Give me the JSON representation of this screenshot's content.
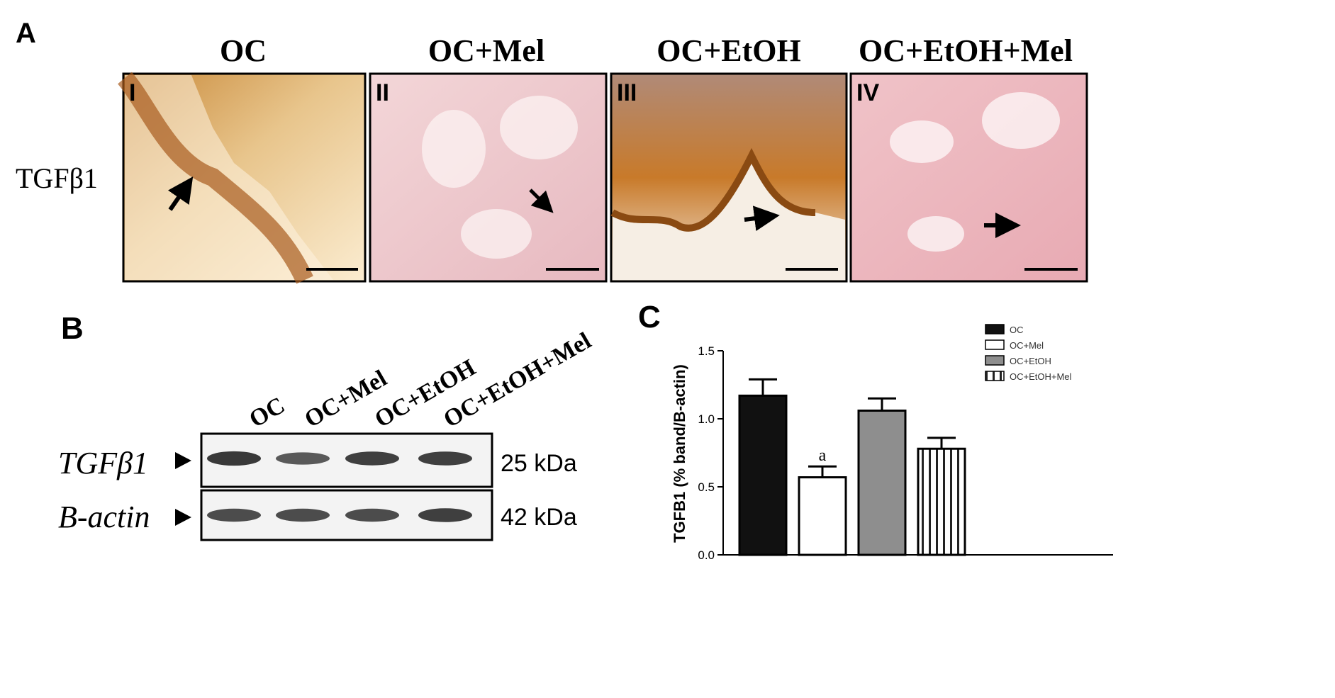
{
  "panel_a": {
    "letter": "A",
    "row_label": "TGFβ1",
    "panels": [
      {
        "title": "OC",
        "numeral": "I"
      },
      {
        "title": "OC+Mel",
        "numeral": "II"
      },
      {
        "title": "OC+EtOH",
        "numeral": "III"
      },
      {
        "title": "OC+EtOH+Mel",
        "numeral": "IV"
      }
    ]
  },
  "panel_b": {
    "letter": "B",
    "lanes": [
      "OC",
      "OC+Mel",
      "OC+EtOH",
      "OC+EtOH+Mel"
    ],
    "blots": [
      {
        "label": "TGFβ1",
        "size": "25 kDa",
        "intensities": [
          0.85,
          0.6,
          0.8,
          0.8
        ]
      },
      {
        "label": "B-actin",
        "size": "42 kDa",
        "intensities": [
          0.7,
          0.7,
          0.7,
          0.8
        ]
      }
    ]
  },
  "chart_data": {
    "letter": "C",
    "type": "bar",
    "categories": [
      "OC",
      "OC+Mel",
      "OC+EtOH",
      "OC+EtOH+Mel"
    ],
    "values": [
      1.17,
      0.57,
      1.06,
      0.78
    ],
    "errors": [
      0.12,
      0.08,
      0.09,
      0.08
    ],
    "annotations": [
      "",
      "a",
      "",
      ""
    ],
    "ylabel": "TGFB1 (% band/B-actin)",
    "ylim": [
      0.0,
      1.5
    ],
    "yticks": [
      "0.0",
      "0.5",
      "1.0",
      "1.5"
    ],
    "legend": [
      "OC",
      "OC+Mel",
      "OC+EtOH",
      "OC+EtOH+Mel"
    ],
    "legend_position": "top-right",
    "fills": [
      "#111111",
      "#ffffff",
      "#8e8e8e",
      "vertical-stripes"
    ]
  }
}
